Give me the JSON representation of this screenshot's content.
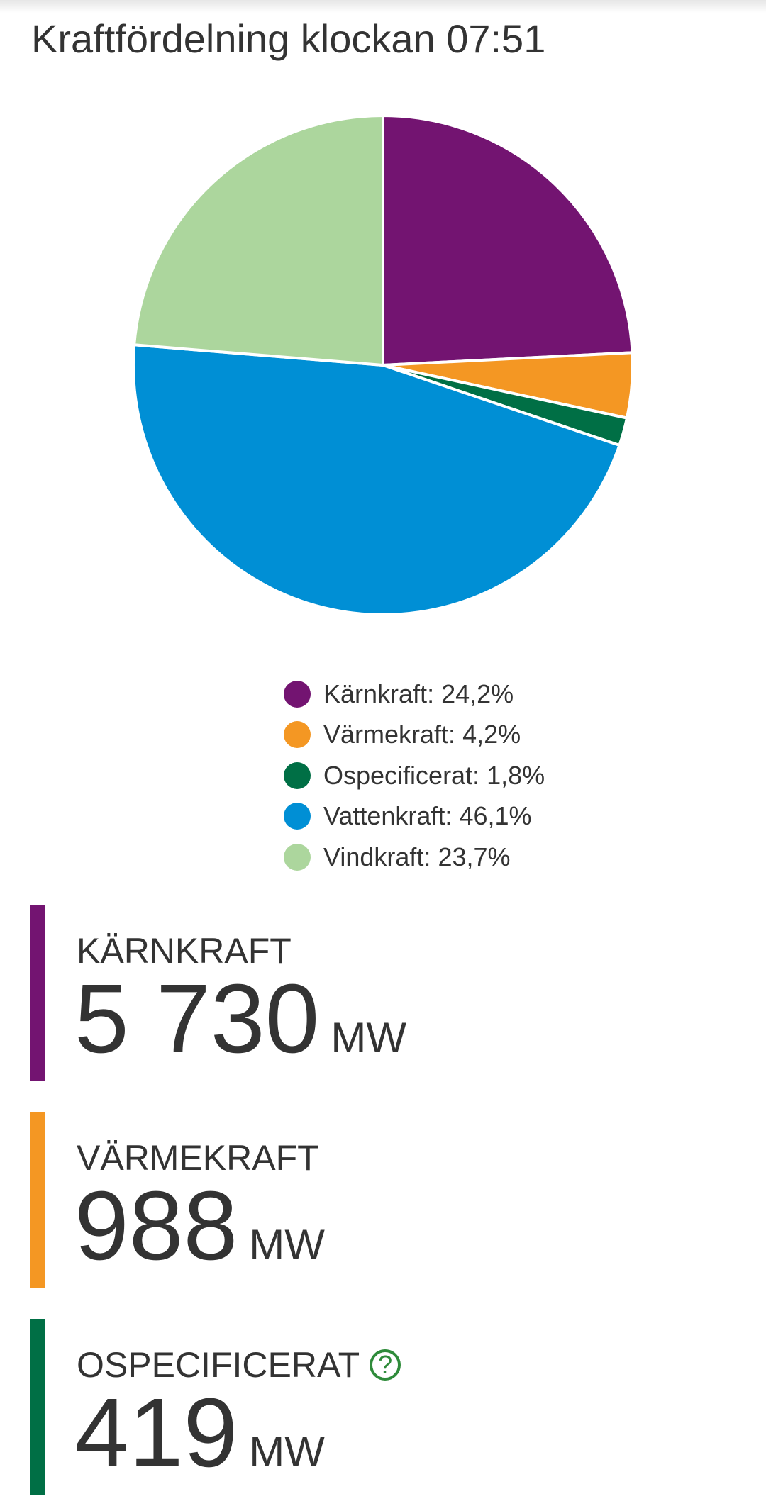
{
  "header": {
    "title": "Kraftfördelning klockan 07:51"
  },
  "chart_data": {
    "type": "pie",
    "categories": [
      "Kärnkraft",
      "Värmekraft",
      "Ospecificerat",
      "Vattenkraft",
      "Vindkraft"
    ],
    "values": [
      24.2,
      4.2,
      1.8,
      46.1,
      23.7
    ],
    "value_labels": [
      "24,2%",
      "4,2%",
      "1,8%",
      "46,1%",
      "23,7%"
    ],
    "colors": [
      "#731471",
      "#f49723",
      "#006f45",
      "#008fd5",
      "#acd69d"
    ]
  },
  "cards": [
    {
      "label": "KÄRNKRAFT",
      "value": "5 730",
      "unit": "MW",
      "color": "#731471"
    },
    {
      "label": "VÄRMEKRAFT",
      "value": "988",
      "unit": "MW",
      "color": "#f49723"
    },
    {
      "label": "OSPECIFICERAT",
      "value": "419",
      "unit": "MW",
      "color": "#006f45",
      "help_icon": "?"
    }
  ]
}
